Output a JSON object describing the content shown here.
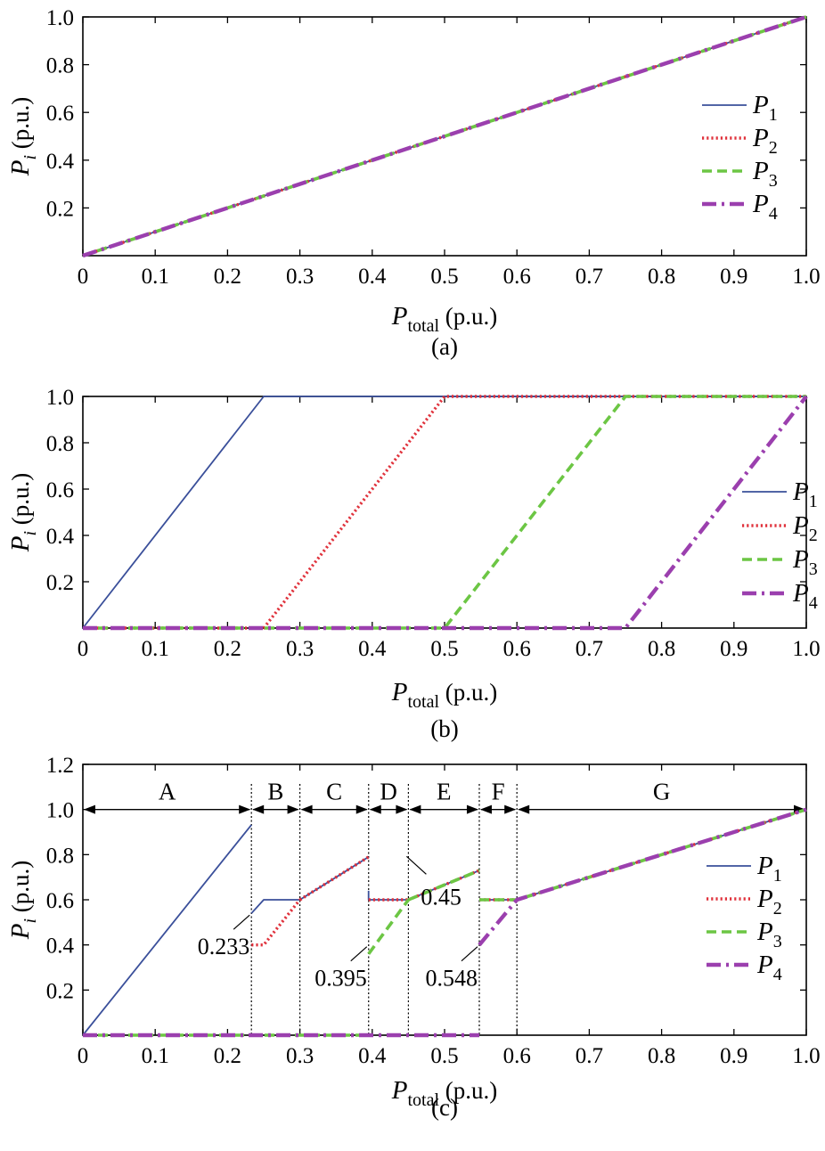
{
  "chart_data": [
    {
      "type": "line",
      "caption": "(a)",
      "xlabel": {
        "main": "P",
        "sub": "total",
        "unit": " (p.u.)"
      },
      "ylabel": {
        "main": "P",
        "sub": "i",
        "unit": " (p.u.)"
      },
      "xlim": [
        0,
        1
      ],
      "ylim": [
        0,
        1
      ],
      "xticks": [
        {
          "v": 0,
          "t": "0"
        },
        {
          "v": 0.1,
          "t": "0.1"
        },
        {
          "v": 0.2,
          "t": "0.2"
        },
        {
          "v": 0.3,
          "t": "0.3"
        },
        {
          "v": 0.4,
          "t": "0.4"
        },
        {
          "v": 0.5,
          "t": "0.5"
        },
        {
          "v": 0.6,
          "t": "0.6"
        },
        {
          "v": 0.7,
          "t": "0.7"
        },
        {
          "v": 0.8,
          "t": "0.8"
        },
        {
          "v": 0.9,
          "t": "0.9"
        },
        {
          "v": 1.0,
          "t": "1.0"
        }
      ],
      "yticks": [
        {
          "v": 0.2,
          "t": "0.2"
        },
        {
          "v": 0.4,
          "t": "0.4"
        },
        {
          "v": 0.6,
          "t": "0.6"
        },
        {
          "v": 0.8,
          "t": "0.8"
        },
        {
          "v": 1.0,
          "t": "1.0"
        }
      ],
      "grid": false,
      "legend_position": "right",
      "series": [
        {
          "name": "P",
          "sub": "1",
          "style": "solid",
          "segments": [
            [
              [
                0,
                0
              ],
              [
                1,
                1
              ]
            ]
          ]
        },
        {
          "name": "P",
          "sub": "2",
          "style": "dotted",
          "segments": [
            [
              [
                0,
                0
              ],
              [
                1,
                1
              ]
            ]
          ]
        },
        {
          "name": "P",
          "sub": "3",
          "style": "dashed",
          "segments": [
            [
              [
                0,
                0
              ],
              [
                1,
                1
              ]
            ]
          ]
        },
        {
          "name": "P",
          "sub": "4",
          "style": "dashdot",
          "segments": [
            [
              [
                0,
                0
              ],
              [
                1,
                1
              ]
            ]
          ]
        }
      ]
    },
    {
      "type": "line",
      "caption": "(b)",
      "xlabel": {
        "main": "P",
        "sub": "total",
        "unit": " (p.u.)"
      },
      "ylabel": {
        "main": "P",
        "sub": "i",
        "unit": " (p.u.)"
      },
      "xlim": [
        0,
        1
      ],
      "ylim": [
        0,
        1
      ],
      "xticks": [
        {
          "v": 0,
          "t": "0"
        },
        {
          "v": 0.1,
          "t": "0.1"
        },
        {
          "v": 0.2,
          "t": "0.2"
        },
        {
          "v": 0.3,
          "t": "0.3"
        },
        {
          "v": 0.4,
          "t": "0.4"
        },
        {
          "v": 0.5,
          "t": "0.5"
        },
        {
          "v": 0.6,
          "t": "0.6"
        },
        {
          "v": 0.7,
          "t": "0.7"
        },
        {
          "v": 0.8,
          "t": "0.8"
        },
        {
          "v": 0.9,
          "t": "0.9"
        },
        {
          "v": 1.0,
          "t": "1.0"
        }
      ],
      "yticks": [
        {
          "v": 0.2,
          "t": "0.2"
        },
        {
          "v": 0.4,
          "t": "0.4"
        },
        {
          "v": 0.6,
          "t": "0.6"
        },
        {
          "v": 0.8,
          "t": "0.8"
        },
        {
          "v": 1.0,
          "t": "1.0"
        }
      ],
      "grid": false,
      "legend_position": "right",
      "series": [
        {
          "name": "P",
          "sub": "1",
          "style": "solid",
          "segments": [
            [
              [
                0,
                0
              ],
              [
                0.25,
                1
              ],
              [
                1,
                1
              ]
            ]
          ]
        },
        {
          "name": "P",
          "sub": "2",
          "style": "dotted",
          "segments": [
            [
              [
                0,
                0
              ],
              [
                0.25,
                0
              ],
              [
                0.5,
                1
              ],
              [
                1,
                1
              ]
            ]
          ]
        },
        {
          "name": "P",
          "sub": "3",
          "style": "dashed",
          "segments": [
            [
              [
                0,
                0
              ],
              [
                0.5,
                0
              ],
              [
                0.75,
                1
              ],
              [
                1,
                1
              ]
            ]
          ]
        },
        {
          "name": "P",
          "sub": "4",
          "style": "dashdot",
          "segments": [
            [
              [
                0,
                0
              ],
              [
                0.75,
                0
              ],
              [
                1,
                1
              ]
            ]
          ]
        }
      ]
    },
    {
      "type": "line",
      "caption": "(c)",
      "xlabel": {
        "main": "P",
        "sub": "total",
        "unit": " (p.u.)"
      },
      "ylabel": {
        "main": "P",
        "sub": "i",
        "unit": " (p.u.)"
      },
      "xlim": [
        0,
        1
      ],
      "ylim": [
        0,
        1.2
      ],
      "xticks": [
        {
          "v": 0,
          "t": "0"
        },
        {
          "v": 0.1,
          "t": "0.1"
        },
        {
          "v": 0.2,
          "t": "0.2"
        },
        {
          "v": 0.3,
          "t": "0.3"
        },
        {
          "v": 0.4,
          "t": "0.4"
        },
        {
          "v": 0.5,
          "t": "0.5"
        },
        {
          "v": 0.6,
          "t": "0.6"
        },
        {
          "v": 0.7,
          "t": "0.7"
        },
        {
          "v": 0.8,
          "t": "0.8"
        },
        {
          "v": 0.9,
          "t": "0.9"
        },
        {
          "v": 1.0,
          "t": "1.0"
        }
      ],
      "yticks": [
        {
          "v": 0.2,
          "t": "0.2"
        },
        {
          "v": 0.4,
          "t": "0.4"
        },
        {
          "v": 0.6,
          "t": "0.6"
        },
        {
          "v": 0.8,
          "t": "0.8"
        },
        {
          "v": 1.0,
          "t": "1.0"
        },
        {
          "v": 1.2,
          "t": "1.2"
        }
      ],
      "grid": false,
      "legend_position": "right",
      "regions": {
        "arrow_y": 1.0,
        "boundaries": [
          0,
          0.233,
          0.3,
          0.395,
          0.45,
          0.548,
          0.6,
          1.0
        ],
        "labels": [
          "A",
          "B",
          "C",
          "D",
          "E",
          "F",
          "G"
        ]
      },
      "annotations": [
        {
          "text": "0.233",
          "x": 0.233,
          "y": 0.54
        },
        {
          "text": "0.395",
          "x": 0.395,
          "y": 0.4
        },
        {
          "text": "0.45",
          "x": 0.45,
          "y": 0.8
        },
        {
          "text": "0.548",
          "x": 0.548,
          "y": 0.4
        }
      ],
      "series": [
        {
          "name": "P",
          "sub": "1",
          "style": "solid",
          "segments": [
            [
              [
                0,
                0
              ],
              [
                0.233,
                0.932
              ]
            ],
            [
              [
                0.233,
                0.54
              ],
              [
                0.25,
                0.6
              ],
              [
                0.3,
                0.6
              ]
            ],
            [
              [
                0.3,
                0.6
              ],
              [
                0.395,
                0.79
              ]
            ],
            [
              [
                0.395,
                0.64
              ],
              [
                0.395,
                0.6
              ],
              [
                0.45,
                0.6
              ]
            ],
            [
              [
                0.45,
                0.6
              ],
              [
                0.548,
                0.73
              ]
            ],
            [
              [
                0.548,
                0.6
              ],
              [
                0.6,
                0.6
              ],
              [
                1,
                1
              ]
            ]
          ]
        },
        {
          "name": "P",
          "sub": "2",
          "style": "dotted",
          "segments": [
            [
              [
                0.233,
                0.4
              ],
              [
                0.25,
                0.4
              ],
              [
                0.3,
                0.6
              ]
            ],
            [
              [
                0.3,
                0.6
              ],
              [
                0.395,
                0.79
              ]
            ],
            [
              [
                0.395,
                0.6
              ],
              [
                0.45,
                0.6
              ]
            ],
            [
              [
                0.45,
                0.6
              ],
              [
                0.548,
                0.73
              ]
            ],
            [
              [
                0.548,
                0.6
              ],
              [
                0.6,
                0.6
              ],
              [
                1,
                1
              ]
            ]
          ]
        },
        {
          "name": "P",
          "sub": "3",
          "style": "dashed",
          "segments": [
            [
              [
                0,
                0
              ],
              [
                0.395,
                0
              ]
            ],
            [
              [
                0.395,
                0.36
              ],
              [
                0.45,
                0.6
              ]
            ],
            [
              [
                0.45,
                0.6
              ],
              [
                0.548,
                0.73
              ]
            ],
            [
              [
                0.548,
                0.6
              ],
              [
                0.6,
                0.6
              ],
              [
                1,
                1
              ]
            ]
          ]
        },
        {
          "name": "P",
          "sub": "4",
          "style": "dashdot",
          "segments": [
            [
              [
                0,
                0
              ],
              [
                0.548,
                0
              ]
            ],
            [
              [
                0.548,
                0.4
              ],
              [
                0.6,
                0.6
              ],
              [
                1,
                1
              ]
            ]
          ]
        }
      ]
    }
  ],
  "colors": {
    "solid": "#3a4f9a",
    "dotted": "#e0323c",
    "dashed": "#6cc644",
    "dashdot": "#9b3fae"
  }
}
